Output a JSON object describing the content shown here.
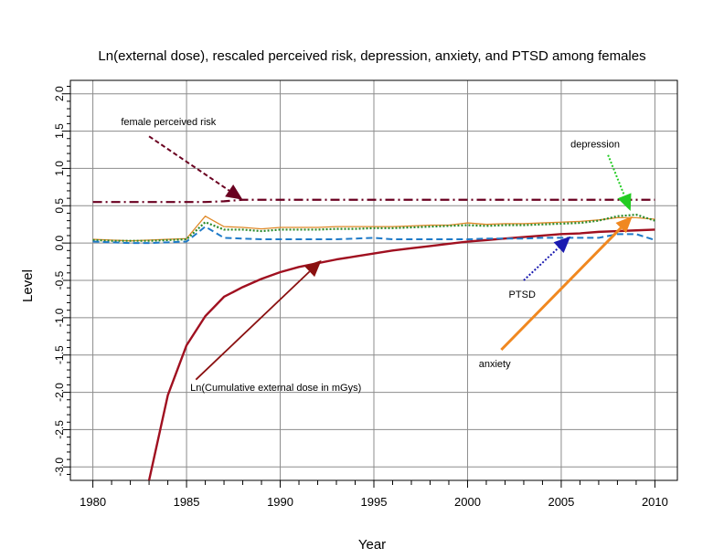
{
  "chart_data": {
    "type": "line",
    "title": "Ln(external dose), rescaled perceived risk, depression, anxiety, and PTSD among females",
    "xlabel": "Year",
    "ylabel": "Level",
    "xlim": [
      1978.8,
      2011.2
    ],
    "ylim": [
      -3.18,
      2.18
    ],
    "grid": true,
    "xticks": [
      "1980",
      "1985",
      "1990",
      "1995",
      "2000",
      "2005",
      "2010"
    ],
    "yticks": [
      "2.0",
      "1.5",
      "1.0",
      "0.5",
      "0.0",
      "-0.5",
      "-1.0",
      "-1.5",
      "-2.0",
      "-2.5",
      "-3.0"
    ],
    "series": [
      {
        "key": "dose",
        "color": "#a01020",
        "style": "solid",
        "x": [
          1983,
          1984,
          1985,
          1986,
          1987,
          1988,
          1989,
          1990,
          1991,
          1992,
          1993,
          1994,
          1995,
          1996,
          1997,
          1998,
          1999,
          2000,
          2001,
          2002,
          2003,
          2004,
          2005,
          2006,
          2007,
          2008,
          2009,
          2010
        ],
        "values": [
          -3.18,
          -2.04,
          -1.37,
          -0.98,
          -0.72,
          -0.59,
          -0.48,
          -0.39,
          -0.32,
          -0.27,
          -0.22,
          -0.18,
          -0.14,
          -0.1,
          -0.07,
          -0.04,
          -0.01,
          0.02,
          0.04,
          0.06,
          0.08,
          0.1,
          0.12,
          0.13,
          0.15,
          0.16,
          0.17,
          0.18
        ]
      },
      {
        "key": "risk",
        "color": "#6a0020",
        "style": "dashdot",
        "x": [
          1980,
          1982,
          1984,
          1986,
          1987,
          1988,
          1990,
          1995,
          2000,
          2005,
          2010
        ],
        "values": [
          0.55,
          0.55,
          0.55,
          0.55,
          0.56,
          0.58,
          0.58,
          0.58,
          0.58,
          0.58,
          0.58
        ]
      },
      {
        "key": "anxiety",
        "color": "#e08a2a",
        "style": "solid-thin",
        "x": [
          1980,
          1981,
          1982,
          1983,
          1984,
          1985,
          1986,
          1987,
          1988,
          1989,
          1990,
          1991,
          1992,
          1993,
          1994,
          1995,
          1996,
          1997,
          1998,
          1999,
          2000,
          2001,
          2002,
          2003,
          2004,
          2005,
          2006,
          2007,
          2008,
          2009,
          2010
        ],
        "values": [
          0.05,
          0.04,
          0.03,
          0.04,
          0.05,
          0.06,
          0.36,
          0.22,
          0.21,
          0.19,
          0.21,
          0.21,
          0.21,
          0.22,
          0.22,
          0.22,
          0.22,
          0.23,
          0.24,
          0.24,
          0.27,
          0.25,
          0.26,
          0.26,
          0.27,
          0.28,
          0.29,
          0.31,
          0.34,
          0.34,
          0.32
        ]
      },
      {
        "key": "depression",
        "color": "#2a8a2a",
        "style": "dotted",
        "x": [
          1980,
          1981,
          1982,
          1983,
          1984,
          1985,
          1986,
          1987,
          1988,
          1989,
          1990,
          1991,
          1992,
          1993,
          1994,
          1995,
          1996,
          1997,
          1998,
          1999,
          2000,
          2001,
          2002,
          2003,
          2004,
          2005,
          2006,
          2007,
          2008,
          2009,
          2010
        ],
        "values": [
          0.04,
          0.03,
          0.03,
          0.03,
          0.04,
          0.05,
          0.28,
          0.18,
          0.18,
          0.16,
          0.18,
          0.18,
          0.18,
          0.19,
          0.19,
          0.2,
          0.2,
          0.21,
          0.22,
          0.23,
          0.24,
          0.23,
          0.24,
          0.24,
          0.25,
          0.26,
          0.27,
          0.3,
          0.36,
          0.38,
          0.3
        ]
      },
      {
        "key": "ptsd",
        "color": "#1e7ac8",
        "style": "dashed",
        "x": [
          1980,
          1981,
          1982,
          1983,
          1984,
          1985,
          1986,
          1987,
          1988,
          1989,
          1990,
          1991,
          1992,
          1993,
          1994,
          1995,
          1996,
          1997,
          1998,
          1999,
          2000,
          2001,
          2002,
          2003,
          2004,
          2005,
          2006,
          2007,
          2008,
          2009,
          2010
        ],
        "values": [
          0.02,
          0.01,
          0.0,
          0.0,
          0.01,
          0.02,
          0.22,
          0.07,
          0.06,
          0.05,
          0.05,
          0.05,
          0.05,
          0.05,
          0.06,
          0.07,
          0.05,
          0.05,
          0.05,
          0.05,
          0.05,
          0.06,
          0.06,
          0.06,
          0.07,
          0.07,
          0.07,
          0.07,
          0.12,
          0.12,
          0.04
        ]
      }
    ],
    "annotations": [
      {
        "key": "risk-label",
        "text": "female perceived risk",
        "x": 1981.5,
        "y": 1.58,
        "anchor": "start",
        "arrow_color": "#6a0020",
        "arrow_style": "dashed",
        "from": [
          1983.0,
          1.43
        ],
        "to": [
          1988.0,
          0.58
        ]
      },
      {
        "key": "depression-label",
        "text": "depression",
        "x": 2005.5,
        "y": 1.28,
        "anchor": "start",
        "arrow_color": "#22cc22",
        "arrow_style": "dotted",
        "from": [
          2007.5,
          1.18
        ],
        "to": [
          2008.7,
          0.43
        ]
      },
      {
        "key": "ptsd-label",
        "text": "PTSD",
        "x": 2002.2,
        "y": -0.73,
        "anchor": "start",
        "arrow_color": "#1a1ab0",
        "arrow_style": "dotted",
        "from": [
          2003.0,
          -0.5
        ],
        "to": [
          2005.5,
          0.09
        ]
      },
      {
        "key": "anxiety-label",
        "text": "anxiety",
        "x": 2000.6,
        "y": -1.66,
        "anchor": "start",
        "arrow_color": "#f08820",
        "arrow_style": "solid",
        "from": [
          2001.8,
          -1.43
        ],
        "to": [
          2008.8,
          0.36
        ]
      },
      {
        "key": "dose-label",
        "text": "Ln(Cumulative external dose in mGys)",
        "x": 1985.2,
        "y": -1.98,
        "anchor": "start",
        "arrow_color": "#8a1010",
        "arrow_style": "solid",
        "from": [
          1985.5,
          -1.83
        ],
        "to": [
          1992.2,
          -0.23
        ]
      }
    ]
  }
}
